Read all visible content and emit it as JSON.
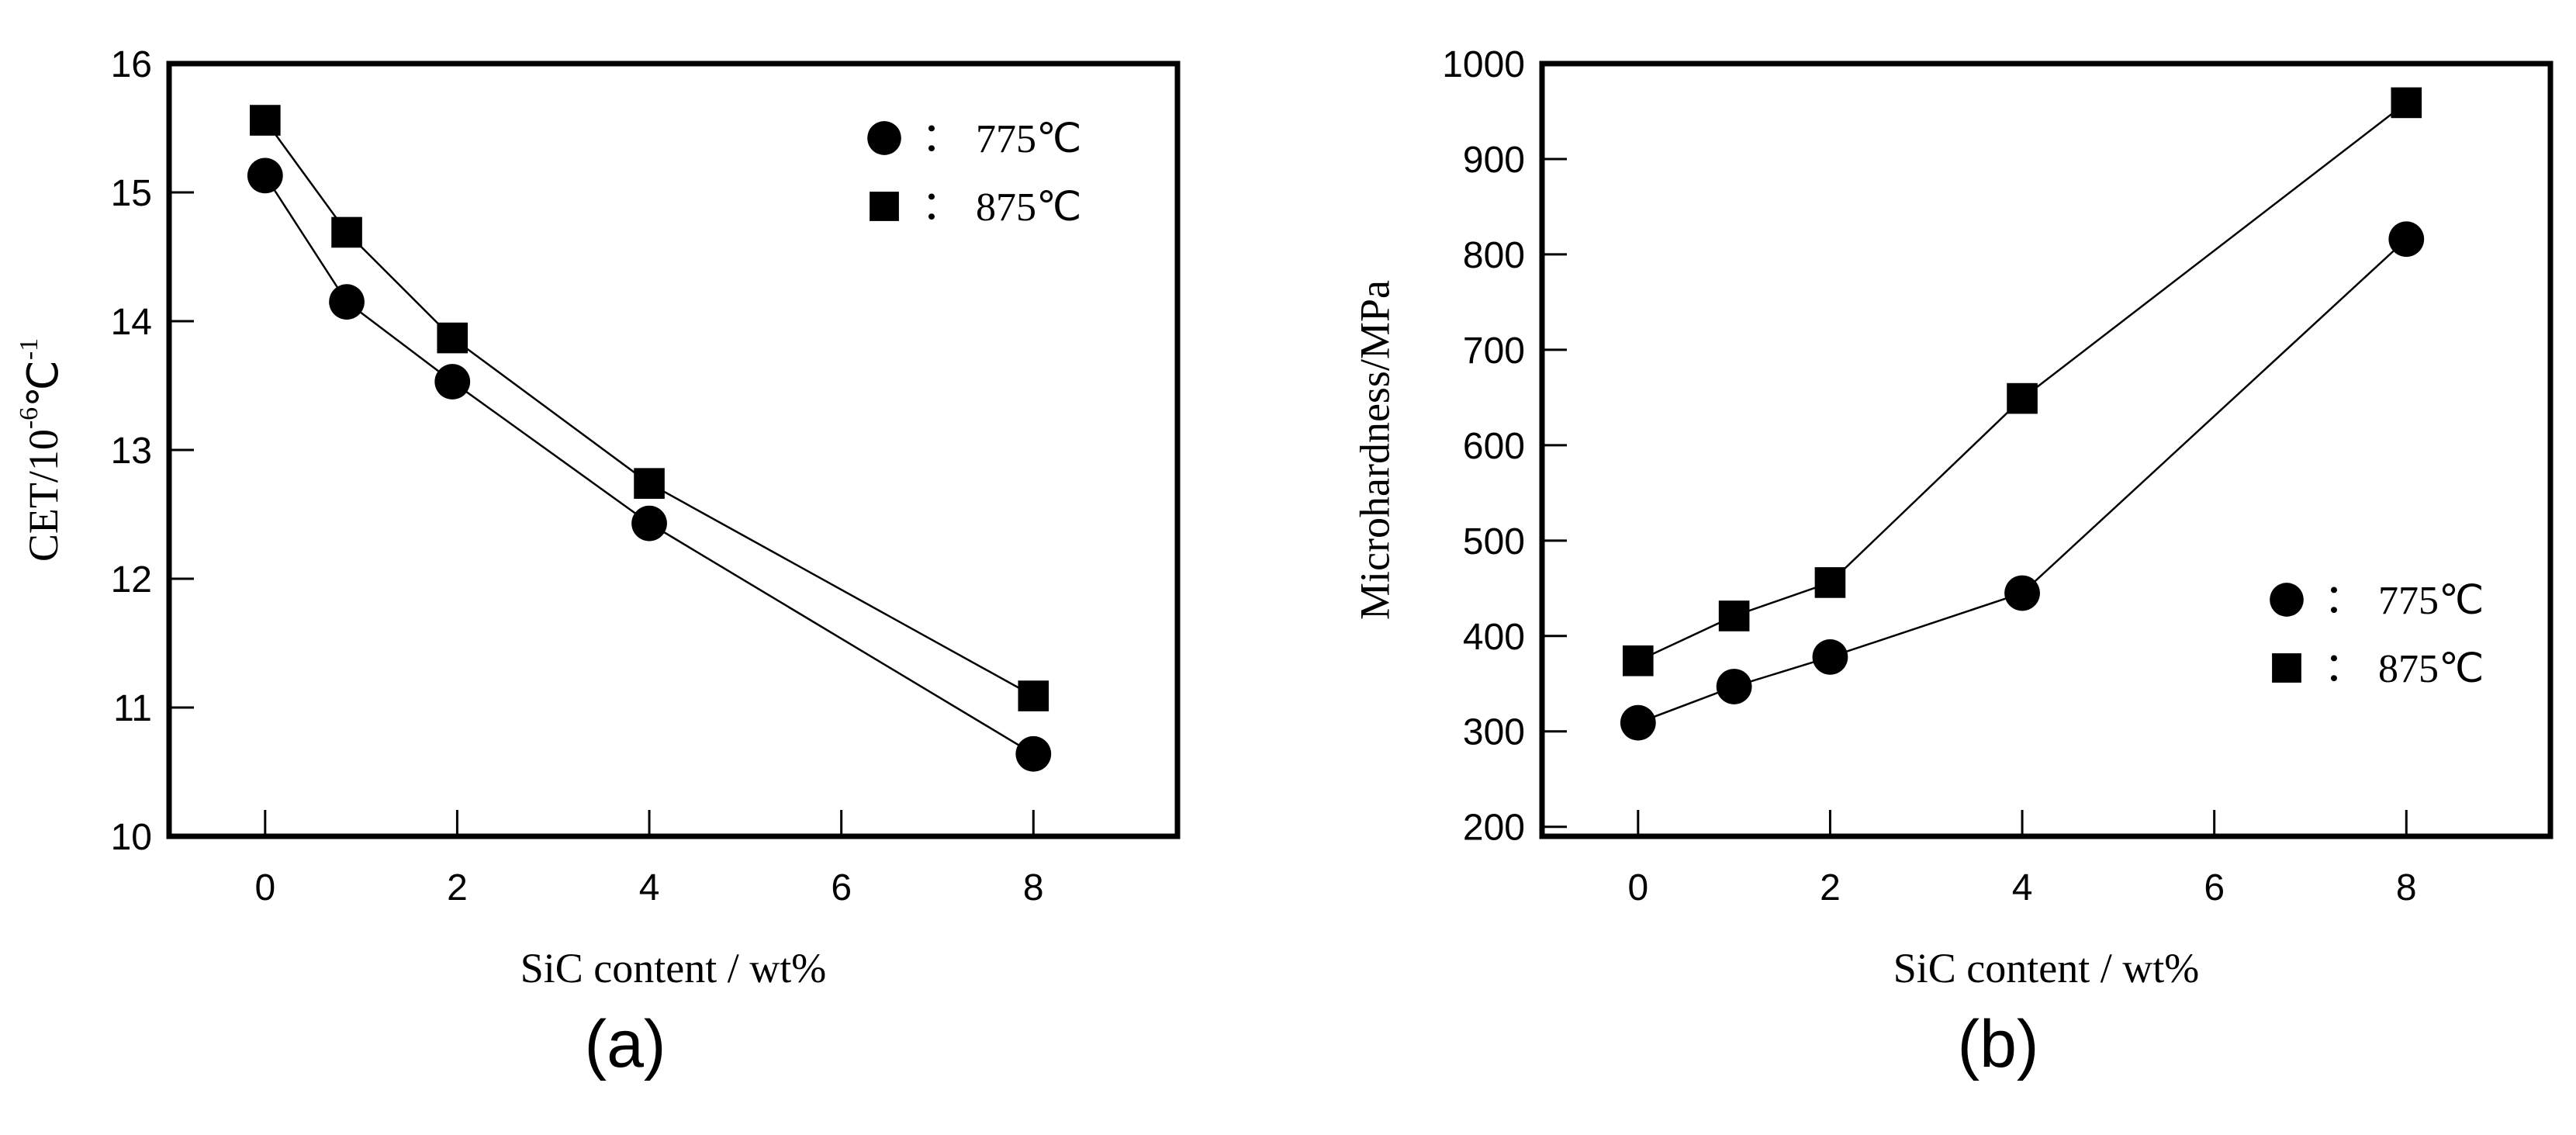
{
  "chart_data": [
    {
      "panel": "(a)",
      "type": "line",
      "xlabel": "SiC content / wt%",
      "ylabel_main": "CET/10",
      "ylabel_exp": "-6",
      "ylabel_unit": "℃",
      "ylabel_unit_exp": "-1",
      "xlim": [
        -1,
        9.5
      ],
      "ylim": [
        10,
        16
      ],
      "xticks": [
        0,
        2,
        4,
        6,
        8
      ],
      "yticks": [
        10,
        11,
        12,
        13,
        14,
        15,
        16
      ],
      "legend_position": "top-right",
      "series": [
        {
          "name": "775℃",
          "marker": "circle",
          "x": [
            0,
            0.85,
            1.95,
            4,
            8
          ],
          "y": [
            15.13,
            14.15,
            13.53,
            12.43,
            10.64
          ]
        },
        {
          "name": "875℃",
          "marker": "square",
          "x": [
            0,
            0.85,
            1.95,
            4,
            8
          ],
          "y": [
            15.56,
            14.69,
            13.87,
            12.74,
            11.09
          ]
        }
      ]
    },
    {
      "panel": "(b)",
      "type": "line",
      "xlabel": "SiC content / wt%",
      "ylabel": "Microhardness/MPa",
      "xlim": [
        -1,
        9.5
      ],
      "ylim": [
        190,
        1000
      ],
      "xticks": [
        0,
        2,
        4,
        6,
        8
      ],
      "yticks": [
        200,
        300,
        400,
        500,
        600,
        700,
        800,
        900,
        1000
      ],
      "legend_position": "bottom-right",
      "series": [
        {
          "name": "775℃",
          "marker": "circle",
          "x": [
            0,
            1,
            2,
            4,
            8
          ],
          "y": [
            309,
            347,
            378,
            445,
            816
          ]
        },
        {
          "name": "875℃",
          "marker": "square",
          "x": [
            0,
            1,
            2,
            4,
            8
          ],
          "y": [
            374,
            421,
            456,
            649,
            959
          ]
        }
      ]
    }
  ],
  "legend_colon": "："
}
